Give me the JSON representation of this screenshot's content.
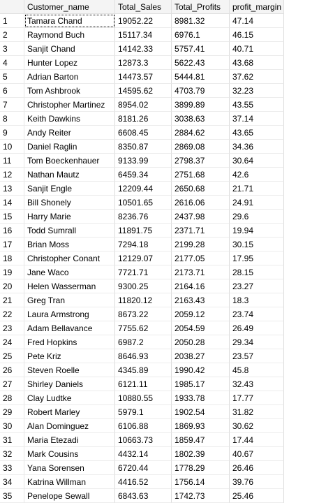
{
  "columns": [
    "Customer_name",
    "Total_Sales",
    "Total_Profits",
    "profit_margin"
  ],
  "rows": [
    [
      "1",
      "Tamara Chand",
      "19052.22",
      "8981.32",
      "47.14"
    ],
    [
      "2",
      "Raymond Buch",
      "15117.34",
      "6976.1",
      "46.15"
    ],
    [
      "3",
      "Sanjit Chand",
      "14142.33",
      "5757.41",
      "40.71"
    ],
    [
      "4",
      "Hunter Lopez",
      "12873.3",
      "5622.43",
      "43.68"
    ],
    [
      "5",
      "Adrian Barton",
      "14473.57",
      "5444.81",
      "37.62"
    ],
    [
      "6",
      "Tom Ashbrook",
      "14595.62",
      "4703.79",
      "32.23"
    ],
    [
      "7",
      "Christopher Martinez",
      "8954.02",
      "3899.89",
      "43.55"
    ],
    [
      "8",
      "Keith Dawkins",
      "8181.26",
      "3038.63",
      "37.14"
    ],
    [
      "9",
      "Andy Reiter",
      "6608.45",
      "2884.62",
      "43.65"
    ],
    [
      "10",
      "Daniel Raglin",
      "8350.87",
      "2869.08",
      "34.36"
    ],
    [
      "11",
      "Tom Boeckenhauer",
      "9133.99",
      "2798.37",
      "30.64"
    ],
    [
      "12",
      "Nathan Mautz",
      "6459.34",
      "2751.68",
      "42.6"
    ],
    [
      "13",
      "Sanjit Engle",
      "12209.44",
      "2650.68",
      "21.71"
    ],
    [
      "14",
      "Bill Shonely",
      "10501.65",
      "2616.06",
      "24.91"
    ],
    [
      "15",
      "Harry Marie",
      "8236.76",
      "2437.98",
      "29.6"
    ],
    [
      "16",
      "Todd Sumrall",
      "11891.75",
      "2371.71",
      "19.94"
    ],
    [
      "17",
      "Brian Moss",
      "7294.18",
      "2199.28",
      "30.15"
    ],
    [
      "18",
      "Christopher Conant",
      "12129.07",
      "2177.05",
      "17.95"
    ],
    [
      "19",
      "Jane Waco",
      "7721.71",
      "2173.71",
      "28.15"
    ],
    [
      "20",
      "Helen Wasserman",
      "9300.25",
      "2164.16",
      "23.27"
    ],
    [
      "21",
      "Greg Tran",
      "11820.12",
      "2163.43",
      "18.3"
    ],
    [
      "22",
      "Laura Armstrong",
      "8673.22",
      "2059.12",
      "23.74"
    ],
    [
      "23",
      "Adam Bellavance",
      "7755.62",
      "2054.59",
      "26.49"
    ],
    [
      "24",
      "Fred Hopkins",
      "6987.2",
      "2050.28",
      "29.34"
    ],
    [
      "25",
      "Pete Kriz",
      "8646.93",
      "2038.27",
      "23.57"
    ],
    [
      "26",
      "Steven Roelle",
      "4345.89",
      "1990.42",
      "45.8"
    ],
    [
      "27",
      "Shirley Daniels",
      "6121.11",
      "1985.17",
      "32.43"
    ],
    [
      "28",
      "Clay Ludtke",
      "10880.55",
      "1933.78",
      "17.77"
    ],
    [
      "29",
      "Robert Marley",
      "5979.1",
      "1902.54",
      "31.82"
    ],
    [
      "30",
      "Alan Dominguez",
      "6106.88",
      "1869.93",
      "30.62"
    ],
    [
      "31",
      "Maria Etezadi",
      "10663.73",
      "1859.47",
      "17.44"
    ],
    [
      "32",
      "Mark Cousins",
      "4432.14",
      "1802.39",
      "40.67"
    ],
    [
      "33",
      "Yana Sorensen",
      "6720.44",
      "1778.29",
      "26.46"
    ],
    [
      "34",
      "Katrina Willman",
      "4416.52",
      "1756.14",
      "39.76"
    ],
    [
      "35",
      "Penelope Sewall",
      "6843.63",
      "1742.73",
      "25.46"
    ]
  ]
}
